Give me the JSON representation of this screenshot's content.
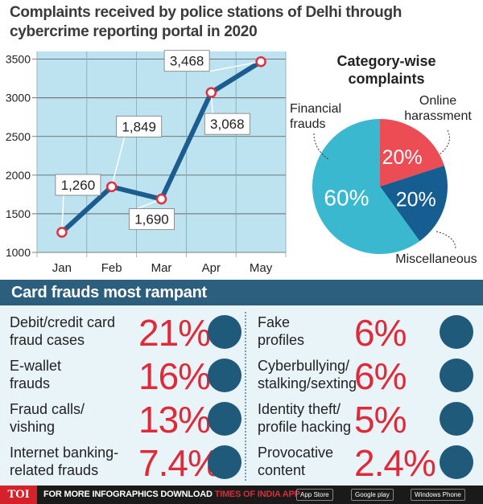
{
  "title": "Complaints received by police stations of Delhi through cybercrime reporting portal in 2020",
  "chart_data": [
    {
      "type": "line",
      "categories": [
        "Jan",
        "Feb",
        "Mar",
        "Apr",
        "May"
      ],
      "values": [
        1260,
        1849,
        1690,
        3068,
        3468
      ],
      "data_labels": [
        "1,260",
        "1,849",
        "1,690",
        "3,068",
        "3,468"
      ],
      "yticks": [
        1000,
        1500,
        2000,
        2500,
        3000,
        3500
      ],
      "ylim": [
        1000,
        3600
      ],
      "grid": true,
      "colors": {
        "line": "#1c5d8f",
        "background": "#bde3f0",
        "marker": "#e03040"
      }
    },
    {
      "type": "pie",
      "title": "Category-wise complaints",
      "slices": [
        {
          "label": "Online harassment",
          "value": 20,
          "value_label": "20%",
          "color": "#ec4d55"
        },
        {
          "label": "Miscellaneous",
          "value": 20,
          "value_label": "20%",
          "color": "#165e91"
        },
        {
          "label": "Financial frauds",
          "value": 60,
          "value_label": "60%",
          "color": "#3ab8cf"
        }
      ]
    }
  ],
  "frauds": {
    "header": "Card frauds most rampant",
    "items": [
      {
        "line1": "Debit/credit card",
        "line2": "fraud cases",
        "pct": "21%",
        "icon": "laptop-card-icon"
      },
      {
        "line1": "E-wallet",
        "line2": "frauds",
        "pct": "16%",
        "icon": "wallet-phone-icon"
      },
      {
        "line1": "Fraud calls/",
        "line2": "vishing",
        "pct": "13%",
        "icon": "phone-call-icon"
      },
      {
        "line1": "Internet banking-",
        "line2": "related frauds",
        "pct": "7.4%",
        "icon": "bank-laptop-icon"
      },
      {
        "line1": "Fake",
        "line2": "profiles",
        "pct": "6%",
        "icon": "hacker-icon"
      },
      {
        "line1": "Cyberbullying/",
        "line2": "stalking/sexting",
        "pct": "6%",
        "icon": "stalker-icon"
      },
      {
        "line1": "Identity theft/",
        "line2": "profile  hacking",
        "pct": "5%",
        "icon": "id-card-icon"
      },
      {
        "line1": "Provocative",
        "line2": "content",
        "pct": "2.4%",
        "icon": "keyboard-icon"
      }
    ]
  },
  "footer": {
    "brand": "TOI",
    "text": "FOR MORE  INFOGRAPHICS DOWNLOAD",
    "app": "TIMES OF INDIA APP",
    "stores": [
      "App Store",
      "Google play",
      "Windows Phone"
    ]
  }
}
